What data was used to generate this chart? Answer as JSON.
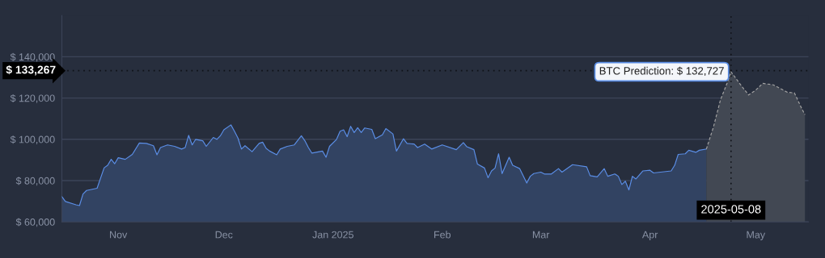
{
  "chart_data": {
    "type": "area",
    "series": [
      {
        "color": "#5b8ee6",
        "line_style": "solid",
        "x": [
          "2024-10-30",
          "2024-10-31",
          "2024-11-03",
          "2024-11-04",
          "2024-11-05",
          "2024-11-06",
          "2024-11-09",
          "2024-11-11",
          "2024-11-12",
          "2024-11-13",
          "2024-11-14",
          "2024-11-15",
          "2024-11-17",
          "2024-11-19",
          "2024-11-21",
          "2024-11-23",
          "2024-11-25",
          "2024-11-26",
          "2024-11-27",
          "2024-11-29",
          "2024-12-01",
          "2024-12-03",
          "2024-12-04",
          "2024-12-05",
          "2024-12-06",
          "2024-12-07",
          "2024-12-09",
          "2024-12-10",
          "2024-12-12",
          "2024-12-13",
          "2024-12-14",
          "2024-12-15",
          "2024-12-17",
          "2024-12-18",
          "2024-12-19",
          "2024-12-20",
          "2024-12-21",
          "2024-12-23",
          "2024-12-25",
          "2024-12-26",
          "2024-12-27",
          "2024-12-28",
          "2024-12-30",
          "2024-12-31",
          "2025-01-02",
          "2025-01-04",
          "2025-01-06",
          "2025-01-07",
          "2025-01-08",
          "2025-01-09",
          "2025-01-12",
          "2025-01-13",
          "2025-01-14",
          "2025-01-16",
          "2025-01-17",
          "2025-01-18",
          "2025-01-19",
          "2025-01-20",
          "2025-01-21",
          "2025-01-22",
          "2025-01-23",
          "2025-01-24",
          "2025-01-26",
          "2025-01-27",
          "2025-01-29",
          "2025-01-30",
          "2025-02-01",
          "2025-02-02",
          "2025-02-04",
          "2025-02-05",
          "2025-02-07",
          "2025-02-08",
          "2025-02-10",
          "2025-02-12",
          "2025-02-15",
          "2025-02-19",
          "2025-02-21",
          "2025-02-22",
          "2025-02-24",
          "2025-02-25",
          "2025-02-27",
          "2025-02-28",
          "2025-03-01",
          "2025-03-02",
          "2025-03-03",
          "2025-03-04",
          "2025-03-06",
          "2025-03-07",
          "2025-03-09",
          "2025-03-11",
          "2025-03-12",
          "2025-03-13",
          "2025-03-15",
          "2025-03-16",
          "2025-03-18",
          "2025-03-20",
          "2025-03-21",
          "2025-03-24",
          "2025-03-28",
          "2025-03-29",
          "2025-03-31",
          "2025-04-02",
          "2025-04-03",
          "2025-04-05",
          "2025-04-06",
          "2025-04-07",
          "2025-04-08",
          "2025-04-09",
          "2025-04-10",
          "2025-04-11",
          "2025-04-13",
          "2025-04-15",
          "2025-04-16",
          "2025-04-21",
          "2025-04-22",
          "2025-04-23",
          "2025-04-25",
          "2025-04-26",
          "2025-04-28",
          "2025-04-29",
          "2025-05-01"
        ],
        "values": [
          72200,
          69900,
          68300,
          67900,
          73500,
          75200,
          76300,
          86200,
          87400,
          90300,
          88200,
          91100,
          90300,
          92700,
          98200,
          98000,
          96900,
          92500,
          96000,
          97300,
          96600,
          95300,
          96000,
          101900,
          97300,
          100000,
          99300,
          96600,
          100900,
          100000,
          101700,
          104600,
          107000,
          103900,
          100600,
          95300,
          96900,
          94000,
          98000,
          98600,
          95600,
          94300,
          92500,
          95300,
          96600,
          97300,
          101700,
          99300,
          96000,
          93300,
          94300,
          91300,
          96600,
          100000,
          103900,
          104600,
          101300,
          106300,
          103300,
          105600,
          103300,
          105500,
          104800,
          100300,
          102200,
          105200,
          102600,
          94300,
          100300,
          98000,
          97700,
          96000,
          97700,
          95300,
          97300,
          95000,
          98400,
          96400,
          95000,
          88000,
          86100,
          81400,
          84700,
          86100,
          93000,
          83400,
          91300,
          87400,
          85800,
          78800,
          82100,
          83400,
          84100,
          83200,
          83200,
          85800,
          84100,
          87700,
          86700,
          82400,
          81800,
          85800,
          82100,
          83200,
          82100,
          78100,
          79700,
          75500,
          82100,
          80800,
          84700,
          85000,
          83700,
          84700,
          87400,
          92700,
          93000,
          94700,
          93700,
          94700,
          95300
        ]
      },
      {
        "color": "#a3a3a3",
        "line_style": "dashed",
        "x": [
          "2025-05-01",
          "2025-05-03",
          "2025-05-05",
          "2025-05-07",
          "2025-05-08",
          "2025-05-11",
          "2025-05-13",
          "2025-05-15",
          "2025-05-17",
          "2025-05-20",
          "2025-05-24",
          "2025-05-26",
          "2025-05-28",
          "2025-05-29"
        ],
        "values": [
          95300,
          105900,
          119100,
          127700,
          132727,
          125800,
          121500,
          123800,
          127100,
          126400,
          122800,
          122500,
          115200,
          111900
        ]
      }
    ],
    "xlim": [
      "2024-10-30",
      "2025-05-30"
    ],
    "xticks": [
      {
        "value": "2024-11-15",
        "label": "Nov"
      },
      {
        "value": "2024-12-15",
        "label": "Dec"
      },
      {
        "value": "2025-01-15",
        "label": "Jan 2025"
      },
      {
        "value": "2025-02-15",
        "label": "Feb"
      },
      {
        "value": "2025-03-15",
        "label": "Mar"
      },
      {
        "value": "2025-04-15",
        "label": "Apr"
      },
      {
        "value": "2025-05-15",
        "label": "May"
      }
    ],
    "ylim": [
      60000,
      160000
    ],
    "yticks": [
      {
        "value": 60000,
        "label": "$ 60,000"
      },
      {
        "value": 80000,
        "label": "$ 80,000"
      },
      {
        "value": 100000,
        "label": "$ 100,000"
      },
      {
        "value": 120000,
        "label": "$ 120,000"
      },
      {
        "value": 140000,
        "label": "$ 140,000"
      }
    ],
    "grid": "y",
    "legend": false,
    "ref_lines": [
      {
        "axis": "y",
        "value": 133267,
        "label": "$ 133,267",
        "color": "#0f1117",
        "line_style": "dotted"
      },
      {
        "axis": "x",
        "value": "2025-05-08",
        "label": "2025-05-08",
        "color": "#0f1117",
        "line_style": "dotted"
      }
    ],
    "annotations": [
      {
        "text": "BTC Prediction: $ 132,727",
        "x": "2025-05-08",
        "y": 132727
      }
    ]
  }
}
